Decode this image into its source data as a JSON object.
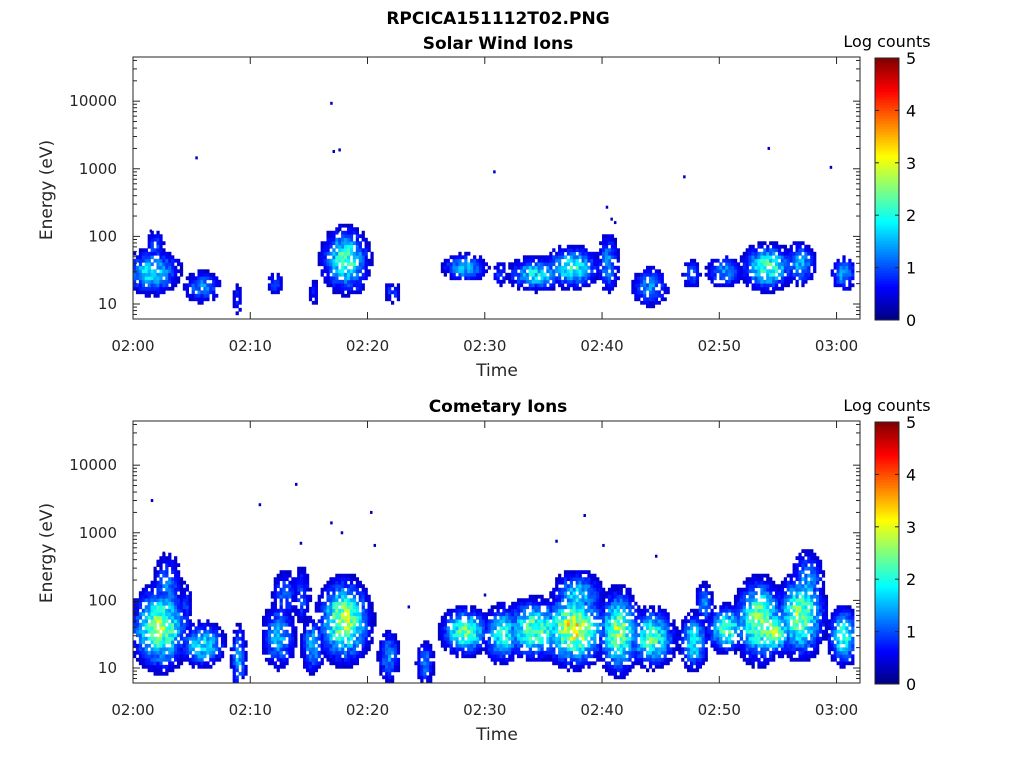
{
  "figure_title": "RPCICA151112T02.PNG",
  "colors": {
    "axis": "#262626",
    "background": "#ffffff"
  },
  "chart_data": [
    {
      "type": "heatmap",
      "title": "Solar Wind Ions",
      "xlabel": "Time",
      "ylabel": "Energy (eV)",
      "x_ticks": [
        "02:00",
        "02:10",
        "02:20",
        "02:30",
        "02:40",
        "02:50",
        "03:00"
      ],
      "x_tick_minutes": [
        0,
        10,
        20,
        30,
        40,
        50,
        60
      ],
      "xlim_minutes": [
        0,
        62
      ],
      "y_ticks": [
        "10",
        "100",
        "1000",
        "10000"
      ],
      "y_tick_values": [
        10,
        100,
        1000,
        10000
      ],
      "ylim": [
        6,
        45000
      ],
      "yscale": "log",
      "colorbar": {
        "label": "Log counts",
        "colormap": "jet",
        "range": [
          0,
          5
        ],
        "ticks": [
          "0",
          "1",
          "2",
          "3",
          "4",
          "5"
        ]
      },
      "blobs": [
        {
          "t": 0.3,
          "e": 35,
          "w": 0.5,
          "s": 0.1,
          "v": 1.2
        },
        {
          "t": 1.5,
          "e": 30,
          "w": 1.4,
          "s": 0.2,
          "v": 1.8
        },
        {
          "t": 1.8,
          "e": 70,
          "w": 0.5,
          "s": 0.18,
          "v": 1.0
        },
        {
          "t": 2.6,
          "e": 38,
          "w": 1.0,
          "s": 0.1,
          "v": 1.1
        },
        {
          "t": 5.8,
          "e": 18,
          "w": 1.0,
          "s": 0.15,
          "v": 1.3
        },
        {
          "t": 8.8,
          "e": 12,
          "w": 0.3,
          "s": 0.2,
          "v": 0.7
        },
        {
          "t": 12.0,
          "e": 20,
          "w": 0.5,
          "s": 0.12,
          "v": 0.9
        },
        {
          "t": 15.3,
          "e": 15,
          "w": 0.3,
          "s": 0.15,
          "v": 0.8
        },
        {
          "t": 18.0,
          "e": 45,
          "w": 1.2,
          "s": 0.28,
          "v": 2.2
        },
        {
          "t": 19.0,
          "e": 20,
          "w": 0.5,
          "s": 0.1,
          "v": 0.9
        },
        {
          "t": 22.0,
          "e": 15,
          "w": 0.5,
          "s": 0.12,
          "v": 0.9
        },
        {
          "t": 28.2,
          "e": 35,
          "w": 1.2,
          "s": 0.12,
          "v": 1.6
        },
        {
          "t": 31.2,
          "e": 28,
          "w": 0.4,
          "s": 0.12,
          "v": 1.0
        },
        {
          "t": 34.3,
          "e": 28,
          "w": 1.5,
          "s": 0.15,
          "v": 1.8
        },
        {
          "t": 37.3,
          "e": 35,
          "w": 1.4,
          "s": 0.18,
          "v": 2.0
        },
        {
          "t": 40.4,
          "e": 40,
          "w": 0.6,
          "s": 0.28,
          "v": 1.3
        },
        {
          "t": 44.0,
          "e": 18,
          "w": 1.0,
          "s": 0.18,
          "v": 1.3
        },
        {
          "t": 47.5,
          "e": 28,
          "w": 0.5,
          "s": 0.15,
          "v": 1.1
        },
        {
          "t": 50.3,
          "e": 30,
          "w": 1.0,
          "s": 0.15,
          "v": 1.3
        },
        {
          "t": 54.0,
          "e": 35,
          "w": 1.3,
          "s": 0.2,
          "v": 2.2
        },
        {
          "t": 56.8,
          "e": 40,
          "w": 0.8,
          "s": 0.2,
          "v": 1.5
        },
        {
          "t": 60.5,
          "e": 28,
          "w": 0.7,
          "s": 0.15,
          "v": 1.4
        }
      ],
      "dots": [
        [
          5.4,
          1450
        ],
        [
          16.9,
          9300
        ],
        [
          17.1,
          1800
        ],
        [
          17.6,
          1900
        ],
        [
          30.8,
          900
        ],
        [
          40.4,
          270
        ],
        [
          40.8,
          180
        ],
        [
          41.1,
          160
        ],
        [
          47.0,
          760
        ],
        [
          54.2,
          2000
        ],
        [
          59.5,
          1050
        ],
        [
          1.5,
          120
        ],
        [
          17.5,
          120
        ]
      ]
    },
    {
      "type": "heatmap",
      "title": "Cometary Ions",
      "xlabel": "Time",
      "ylabel": "Energy (eV)",
      "x_ticks": [
        "02:00",
        "02:10",
        "02:20",
        "02:30",
        "02:40",
        "02:50",
        "03:00"
      ],
      "x_tick_minutes": [
        0,
        10,
        20,
        30,
        40,
        50,
        60
      ],
      "xlim_minutes": [
        0,
        62
      ],
      "y_ticks": [
        "10",
        "100",
        "1000",
        "10000"
      ],
      "y_tick_values": [
        10,
        100,
        1000,
        10000
      ],
      "ylim": [
        6,
        45000
      ],
      "yscale": "log",
      "colorbar": {
        "label": "Log counts",
        "colormap": "jet",
        "range": [
          0,
          5
        ],
        "ticks": [
          "0",
          "1",
          "2",
          "3",
          "4",
          "5"
        ]
      },
      "blobs": [
        {
          "t": 0.4,
          "e": 35,
          "w": 0.5,
          "s": 0.15,
          "v": 1.2
        },
        {
          "t": 2.2,
          "e": 40,
          "w": 1.4,
          "s": 0.35,
          "v": 2.6
        },
        {
          "t": 2.8,
          "e": 150,
          "w": 0.8,
          "s": 0.35,
          "v": 1.2
        },
        {
          "t": 4.4,
          "e": 80,
          "w": 0.3,
          "s": 0.3,
          "v": 0.9
        },
        {
          "t": 5.8,
          "e": 22,
          "w": 1.2,
          "s": 0.2,
          "v": 1.8
        },
        {
          "t": 8.9,
          "e": 14,
          "w": 0.4,
          "s": 0.3,
          "v": 1.5
        },
        {
          "t": 12.3,
          "e": 30,
          "w": 0.9,
          "s": 0.3,
          "v": 1.5
        },
        {
          "t": 12.8,
          "e": 120,
          "w": 0.7,
          "s": 0.25,
          "v": 1.1
        },
        {
          "t": 14.3,
          "e": 120,
          "w": 0.5,
          "s": 0.3,
          "v": 1.0
        },
        {
          "t": 15.2,
          "e": 22,
          "w": 0.6,
          "s": 0.25,
          "v": 1.6
        },
        {
          "t": 17.9,
          "e": 50,
          "w": 1.3,
          "s": 0.35,
          "v": 2.7
        },
        {
          "t": 21.7,
          "e": 15,
          "w": 0.6,
          "s": 0.25,
          "v": 1.3
        },
        {
          "t": 24.8,
          "e": 12,
          "w": 0.5,
          "s": 0.2,
          "v": 1.3
        },
        {
          "t": 28.2,
          "e": 35,
          "w": 1.2,
          "s": 0.2,
          "v": 2.4
        },
        {
          "t": 31.4,
          "e": 32,
          "w": 1.0,
          "s": 0.25,
          "v": 2.0
        },
        {
          "t": 34.2,
          "e": 38,
          "w": 1.6,
          "s": 0.25,
          "v": 2.4
        },
        {
          "t": 37.5,
          "e": 38,
          "w": 1.5,
          "s": 0.3,
          "v": 3.1
        },
        {
          "t": 37.8,
          "e": 120,
          "w": 1.3,
          "s": 0.22,
          "v": 1.7
        },
        {
          "t": 41.3,
          "e": 35,
          "w": 1.0,
          "s": 0.35,
          "v": 2.6
        },
        {
          "t": 44.1,
          "e": 28,
          "w": 1.2,
          "s": 0.25,
          "v": 2.3
        },
        {
          "t": 47.7,
          "e": 25,
          "w": 0.7,
          "s": 0.25,
          "v": 2.0
        },
        {
          "t": 48.6,
          "e": 90,
          "w": 0.5,
          "s": 0.2,
          "v": 1.3
        },
        {
          "t": 50.5,
          "e": 38,
          "w": 1.0,
          "s": 0.2,
          "v": 2.2
        },
        {
          "t": 53.3,
          "e": 50,
          "w": 1.2,
          "s": 0.35,
          "v": 2.6
        },
        {
          "t": 54.5,
          "e": 35,
          "w": 1.0,
          "s": 0.2,
          "v": 2.6
        },
        {
          "t": 56.8,
          "e": 60,
          "w": 1.2,
          "s": 0.35,
          "v": 2.6
        },
        {
          "t": 57.4,
          "e": 180,
          "w": 0.9,
          "s": 0.3,
          "v": 1.4
        },
        {
          "t": 60.5,
          "e": 30,
          "w": 0.8,
          "s": 0.25,
          "v": 2.1
        }
      ],
      "dots": [
        [
          1.6,
          3000
        ],
        [
          10.8,
          2600
        ],
        [
          13.9,
          5200
        ],
        [
          14.3,
          700
        ],
        [
          16.9,
          1400
        ],
        [
          17.8,
          1000
        ],
        [
          20.3,
          2000
        ],
        [
          20.6,
          650
        ],
        [
          23.5,
          80
        ],
        [
          30.0,
          120
        ],
        [
          36.1,
          750
        ],
        [
          38.5,
          1800
        ],
        [
          40.1,
          650
        ],
        [
          44.6,
          450
        ],
        [
          2.6,
          500
        ],
        [
          2.9,
          420
        ]
      ]
    }
  ]
}
